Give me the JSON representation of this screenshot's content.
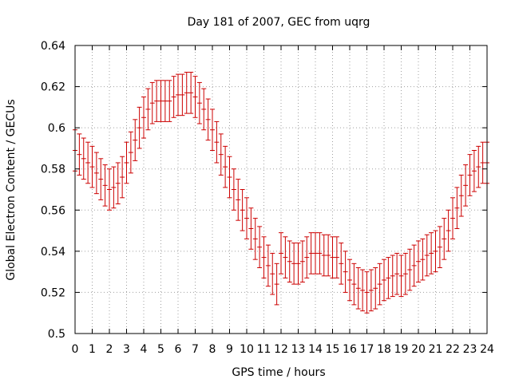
{
  "chart_data": {
    "type": "scatter",
    "title": "Day 181 of 2007, GEC from uqrg",
    "xlabel": "GPS time / hours",
    "ylabel": "Global Electron Content / GECUs",
    "xlim": [
      0,
      24
    ],
    "ylim": [
      0.5,
      0.64
    ],
    "xticks": [
      "0",
      "1",
      "2",
      "3",
      "4",
      "5",
      "6",
      "7",
      "8",
      "9",
      "10",
      "11",
      "12",
      "13",
      "14",
      "15",
      "16",
      "17",
      "18",
      "19",
      "20",
      "21",
      "22",
      "23",
      "24"
    ],
    "yticks": [
      "0.5",
      "0.52",
      "0.54",
      "0.56",
      "0.58",
      "0.6",
      "0.62",
      "0.64"
    ],
    "grid": true,
    "legend": "none",
    "series": [
      {
        "color": "#cc0000",
        "style": "points with vertical error bars",
        "error": 0.01,
        "points": [
          [
            0.0,
            0.589
          ],
          [
            0.25,
            0.587
          ],
          [
            0.5,
            0.585
          ],
          [
            0.75,
            0.583
          ],
          [
            1.0,
            0.581
          ],
          [
            1.25,
            0.578
          ],
          [
            1.5,
            0.575
          ],
          [
            1.75,
            0.572
          ],
          [
            2.0,
            0.57
          ],
          [
            2.25,
            0.571
          ],
          [
            2.5,
            0.573
          ],
          [
            2.75,
            0.576
          ],
          [
            3.0,
            0.583
          ],
          [
            3.25,
            0.588
          ],
          [
            3.5,
            0.594
          ],
          [
            3.75,
            0.6
          ],
          [
            4.0,
            0.605
          ],
          [
            4.25,
            0.609
          ],
          [
            4.5,
            0.612
          ],
          [
            4.75,
            0.613
          ],
          [
            5.0,
            0.613
          ],
          [
            5.25,
            0.613
          ],
          [
            5.5,
            0.613
          ],
          [
            5.75,
            0.615
          ],
          [
            6.0,
            0.616
          ],
          [
            6.25,
            0.616
          ],
          [
            6.5,
            0.617
          ],
          [
            6.75,
            0.617
          ],
          [
            7.0,
            0.615
          ],
          [
            7.25,
            0.612
          ],
          [
            7.5,
            0.609
          ],
          [
            7.75,
            0.604
          ],
          [
            8.0,
            0.599
          ],
          [
            8.25,
            0.593
          ],
          [
            8.5,
            0.587
          ],
          [
            8.75,
            0.581
          ],
          [
            9.0,
            0.576
          ],
          [
            9.25,
            0.57
          ],
          [
            9.5,
            0.565
          ],
          [
            9.75,
            0.56
          ],
          [
            10.0,
            0.556
          ],
          [
            10.25,
            0.551
          ],
          [
            10.5,
            0.546
          ],
          [
            10.75,
            0.542
          ],
          [
            11.0,
            0.537
          ],
          [
            11.25,
            0.533
          ],
          [
            11.5,
            0.529
          ],
          [
            11.75,
            0.524
          ],
          [
            12.0,
            0.539
          ],
          [
            12.25,
            0.537
          ],
          [
            12.5,
            0.535
          ],
          [
            12.75,
            0.534
          ],
          [
            13.0,
            0.534
          ],
          [
            13.25,
            0.535
          ],
          [
            13.5,
            0.537
          ],
          [
            13.75,
            0.539
          ],
          [
            14.0,
            0.539
          ],
          [
            14.25,
            0.539
          ],
          [
            14.5,
            0.538
          ],
          [
            14.75,
            0.538
          ],
          [
            15.0,
            0.537
          ],
          [
            15.25,
            0.537
          ],
          [
            15.5,
            0.534
          ],
          [
            15.75,
            0.53
          ],
          [
            16.0,
            0.526
          ],
          [
            16.25,
            0.524
          ],
          [
            16.5,
            0.522
          ],
          [
            16.75,
            0.521
          ],
          [
            17.0,
            0.52
          ],
          [
            17.25,
            0.521
          ],
          [
            17.5,
            0.522
          ],
          [
            17.75,
            0.524
          ],
          [
            18.0,
            0.526
          ],
          [
            18.25,
            0.527
          ],
          [
            18.5,
            0.528
          ],
          [
            18.75,
            0.529
          ],
          [
            19.0,
            0.528
          ],
          [
            19.25,
            0.529
          ],
          [
            19.5,
            0.531
          ],
          [
            19.75,
            0.533
          ],
          [
            20.0,
            0.535
          ],
          [
            20.25,
            0.536
          ],
          [
            20.5,
            0.538
          ],
          [
            20.75,
            0.539
          ],
          [
            21.0,
            0.54
          ],
          [
            21.25,
            0.542
          ],
          [
            21.5,
            0.546
          ],
          [
            21.75,
            0.55
          ],
          [
            22.0,
            0.556
          ],
          [
            22.25,
            0.561
          ],
          [
            22.5,
            0.567
          ],
          [
            22.75,
            0.572
          ],
          [
            23.0,
            0.577
          ],
          [
            23.25,
            0.579
          ],
          [
            23.5,
            0.581
          ],
          [
            23.75,
            0.583
          ],
          [
            24.0,
            0.583
          ]
        ]
      }
    ]
  }
}
